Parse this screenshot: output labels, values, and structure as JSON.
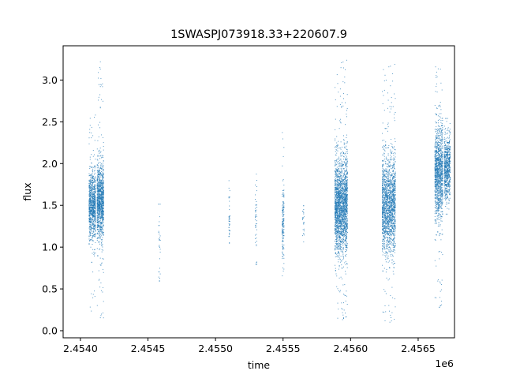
{
  "chart_data": {
    "type": "scatter",
    "title": "1SWASPJ073918.33+220607.9",
    "xlabel": "time",
    "ylabel": "flux",
    "x_offset_label": "1e6",
    "xlim": [
      2453872,
      2456769
    ],
    "ylim": [
      -0.085,
      3.41
    ],
    "xticks": [
      2454000,
      2454500,
      2455000,
      2455500,
      2456000,
      2456500
    ],
    "xtick_labels": [
      "2.4540",
      "2.4545",
      "2.4550",
      "2.4555",
      "2.4560",
      "2.4565"
    ],
    "yticks": [
      0,
      0.5,
      1,
      1.5,
      2,
      2.5,
      3
    ],
    "ytick_labels": [
      "0.0",
      "0.5",
      "1.0",
      "1.5",
      "2.0",
      "2.5",
      "3.0"
    ],
    "grid": false,
    "marker_color": "#1f77b4",
    "clusters": [
      {
        "time_range": [
          2454060,
          2454110
        ],
        "flux_median": 1.5,
        "flux_spread": 0.2,
        "flux_min": 0.2,
        "flux_max": 2.62,
        "points": 900
      },
      {
        "time_range": [
          2454120,
          2454170
        ],
        "flux_median": 1.55,
        "flux_spread": 0.22,
        "flux_min": 0.15,
        "flux_max": 3.23,
        "points": 1100
      },
      {
        "time_range": [
          2454575,
          2454590
        ],
        "flux_median": 1.0,
        "flux_spread": 0.3,
        "flux_min": 0.6,
        "flux_max": 1.52,
        "points": 30
      },
      {
        "time_range": [
          2455095,
          2455105
        ],
        "flux_median": 1.35,
        "flux_spread": 0.2,
        "flux_min": 0.92,
        "flux_max": 1.8,
        "points": 40
      },
      {
        "time_range": [
          2455290,
          2455305
        ],
        "flux_median": 1.3,
        "flux_spread": 0.25,
        "flux_min": 0.8,
        "flux_max": 1.88,
        "points": 45
      },
      {
        "time_range": [
          2455490,
          2455505
        ],
        "flux_median": 1.25,
        "flux_spread": 0.22,
        "flux_min": 0.5,
        "flux_max": 2.42,
        "points": 160
      },
      {
        "time_range": [
          2455640,
          2455655
        ],
        "flux_median": 1.3,
        "flux_spread": 0.12,
        "flux_min": 1.05,
        "flux_max": 1.5,
        "points": 25
      },
      {
        "time_range": [
          2455880,
          2455975
        ],
        "flux_median": 1.5,
        "flux_spread": 0.28,
        "flux_min": 0.1,
        "flux_max": 3.25,
        "points": 2200
      },
      {
        "time_range": [
          2456230,
          2456330
        ],
        "flux_median": 1.5,
        "flux_spread": 0.28,
        "flux_min": 0.07,
        "flux_max": 3.2,
        "points": 1800
      },
      {
        "time_range": [
          2456620,
          2456680
        ],
        "flux_median": 1.9,
        "flux_spread": 0.28,
        "flux_min": 0.25,
        "flux_max": 3.23,
        "points": 1200
      },
      {
        "time_range": [
          2456690,
          2456735
        ],
        "flux_median": 1.95,
        "flux_spread": 0.18,
        "flux_min": 1.4,
        "flux_max": 2.65,
        "points": 700
      }
    ]
  }
}
